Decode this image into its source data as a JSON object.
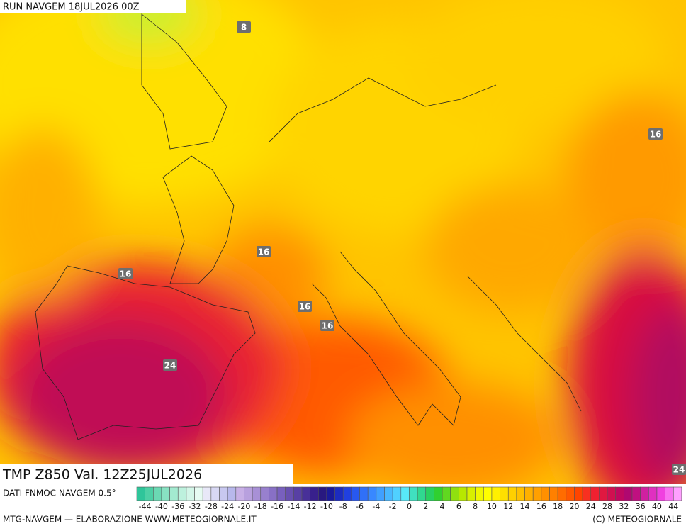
{
  "header": {
    "run": "RUN NAVGEM 18JUL2026 00Z"
  },
  "map": {
    "contour_labels": [
      "8",
      "16",
      "16",
      "16",
      "16",
      "16",
      "24",
      "24"
    ]
  },
  "title_box": {
    "text": "TMP Z850 Val. 12Z25JUL2026"
  },
  "legend": {
    "source": "DATI FNMOC NAVGEM 0.5°",
    "ticks": [
      -44,
      -40,
      -36,
      -32,
      -28,
      -24,
      -20,
      -18,
      -16,
      -14,
      -12,
      -10,
      -8,
      -6,
      -4,
      -2,
      0,
      2,
      4,
      6,
      8,
      10,
      12,
      14,
      16,
      18,
      20,
      24,
      28,
      32,
      36,
      40,
      44
    ],
    "colors": [
      "#2fc59a",
      "#4dd0a5",
      "#6bd9b3",
      "#88e2c2",
      "#a3ead0",
      "#bdf1dd",
      "#d3f6e8",
      "#e6fbf2",
      "#e8e8f8",
      "#d8d8f4",
      "#c8c8f0",
      "#b8b8ec",
      "#c8b0e6",
      "#b8a0de",
      "#a890d6",
      "#9880ce",
      "#8870c6",
      "#7860be",
      "#6850b0",
      "#5840a4",
      "#483098",
      "#38208c",
      "#281880",
      "#1a1a9a",
      "#1c2cc0",
      "#2040e0",
      "#2858f0",
      "#3070f8",
      "#3888ff",
      "#40a0ff",
      "#48b8ff",
      "#50d0ff",
      "#58e8f8",
      "#40e0c0",
      "#30d890",
      "#28d060",
      "#30d030",
      "#60d820",
      "#90e010",
      "#b8e800",
      "#d8f000",
      "#f0f800",
      "#ffff00",
      "#fff000",
      "#ffe000",
      "#ffd000",
      "#ffc000",
      "#ffb000",
      "#ffa000",
      "#ff9000",
      "#ff8000",
      "#ff6c00",
      "#ff5800",
      "#ff4400",
      "#f83020",
      "#f02030",
      "#e01840",
      "#d01050",
      "#c00860",
      "#b00870",
      "#c01080",
      "#d020a0",
      "#e030c0",
      "#f040e0",
      "#f870f0",
      "#ffa0ff"
    ]
  },
  "footer": {
    "left": "MTG-NAVGEM — ELABORAZIONE WWW.METEOGIORNALE.IT",
    "right": "(C) METEOGIORNALE"
  }
}
